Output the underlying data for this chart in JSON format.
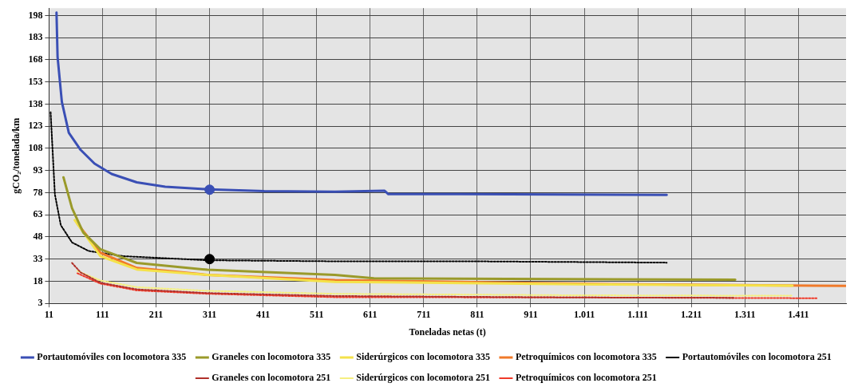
{
  "chart_data": {
    "type": "line",
    "xlabel": "Toneladas netas (t)",
    "ylabel": "gCO₂/tonelada/km",
    "xlim": [
      11,
      1500
    ],
    "xticks": [
      11,
      111,
      211,
      311,
      411,
      511,
      611,
      711,
      811,
      911,
      {
        "value": 1011,
        "label": "1.011"
      },
      {
        "value": 1111,
        "label": "1.111"
      },
      {
        "value": 1211,
        "label": "1.211"
      },
      {
        "value": 1311,
        "label": "1.311"
      },
      {
        "value": 1411,
        "label": "1.411"
      }
    ],
    "ylim": [
      3,
      203
    ],
    "yticks": [
      3,
      18,
      33,
      48,
      63,
      78,
      93,
      108,
      123,
      138,
      153,
      168,
      183,
      198
    ],
    "grid": true,
    "legend": "bottom",
    "marker": "none",
    "line_style": "solid",
    "series": [
      {
        "name": "Portautomóviles con locomotora 335",
        "color": "#3a4fb5",
        "x": [
          25,
          27,
          35,
          48,
          70,
          96,
          128,
          175,
          228,
          307,
          413,
          545,
          638,
          645,
          780,
          1165
        ],
        "values": [
          200,
          170,
          139.5,
          118.6,
          107,
          97.7,
          90.7,
          85,
          82,
          80.3,
          79,
          78.7,
          79.3,
          77,
          77,
          76.5
        ]
      },
      {
        "name": "Graneles con locomotora 335",
        "color": "#9a9a2a",
        "x": [
          38,
          54,
          75,
          107,
          175,
          307,
          545,
          618,
          1293
        ],
        "values": [
          88.4,
          67.5,
          51,
          39.7,
          30.4,
          25.8,
          22.3,
          20,
          19
        ]
      },
      {
        "name": "Siderúrgicos con locomotora 335",
        "color": "#f4e24a",
        "x": [
          59,
          107,
          175,
          307,
          545,
          1000,
          1400
        ],
        "values": [
          59.4,
          35,
          26,
          22.3,
          17.6,
          16,
          15
        ]
      },
      {
        "name": "Petroquímicos con locomotora 335",
        "color": "#f07a2a",
        "x": [
          64,
          107,
          175,
          307,
          545,
          1000,
          1500
        ],
        "values": [
          57,
          37.3,
          27,
          22.3,
          18.8,
          16.3,
          14.8
        ]
      },
      {
        "name": "Portautomóviles con locomotora 251",
        "color": "#000000",
        "line_style": "dotted",
        "x": [
          14,
          17,
          22,
          33,
          54,
          85,
          149,
          307,
          545,
          800,
          1165
        ],
        "values": [
          132.5,
          111.6,
          76.8,
          56,
          44.3,
          38.5,
          35,
          32.2,
          31.5,
          31.5,
          30.6
        ]
      },
      {
        "name": "Graneles con locomotora 251",
        "color": "#b0302a",
        "line_style": "dotted",
        "x": [
          54,
          70,
          107,
          175,
          307,
          545,
          1000,
          1290
        ],
        "values": [
          30.4,
          24,
          17,
          12.5,
          10,
          8,
          7,
          6.8
        ]
      },
      {
        "name": "Siderúrgicos con locomotora 251",
        "color": "#f5ef80",
        "line_style": "dotted",
        "x": [
          64,
          107,
          175,
          307,
          545,
          1000,
          1400
        ],
        "values": [
          25,
          18.5,
          14,
          11.5,
          9.5,
          8.5,
          8.2
        ]
      },
      {
        "name": "Petroquímicos con locomotora 251",
        "color": "#f03a2a",
        "line_style": "dotted",
        "x": [
          64,
          107,
          175,
          307,
          545,
          1000,
          1445
        ],
        "values": [
          23.4,
          16.4,
          11.8,
          9.5,
          7.2,
          7,
          6.5
        ]
      },
      {
        "type": "scatter",
        "marker": "circle",
        "color": "#3a4fb5",
        "x": [
          311
        ],
        "values": [
          80
        ]
      },
      {
        "type": "scatter",
        "marker": "circle",
        "color": "#000000",
        "x": [
          311
        ],
        "values": [
          33
        ]
      }
    ]
  }
}
